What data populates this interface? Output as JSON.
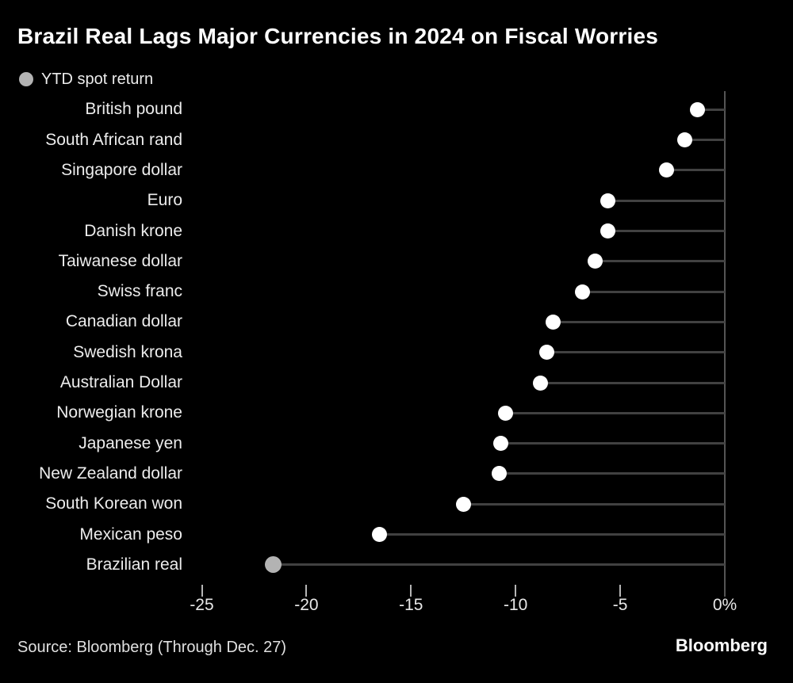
{
  "title": "Brazil Real Lags Major Currencies in 2024 on Fiscal Worries",
  "legend": {
    "label": "YTD spot return"
  },
  "footer": {
    "source": "Source: Bloomberg (Through Dec. 27)",
    "brand": "Bloomberg"
  },
  "colors": {
    "background": "#000000",
    "title_text": "#ffffff",
    "label_text": "#ececec",
    "tick_text": "#e8e8e8",
    "dot": "#ffffff",
    "highlight_dot": "#b3b3b3",
    "legend_dot": "#b3b3b3",
    "stem": "#414141",
    "axis_line": "#555555",
    "tick_mark": "#b5b5b5",
    "footer_text": "#e0e0e0",
    "brand_text": "#ffffff"
  },
  "chart_data": {
    "type": "scatter",
    "variant": "horizontal-lollipop-dot",
    "title": "Brazil Real Lags Major Currencies in 2024 on Fiscal Worries",
    "series_name": "YTD spot return",
    "unit": "%",
    "categories": [
      "British pound",
      "South African rand",
      "Singapore dollar",
      "Euro",
      "Danish krone",
      "Taiwanese dollar",
      "Swiss franc",
      "Canadian dollar",
      "Swedish krona",
      "Australian Dollar",
      "Norwegian krone",
      "Japanese yen",
      "New Zealand dollar",
      "South Korean won",
      "Mexican peso",
      "Brazilian real"
    ],
    "values": [
      -1.3,
      -1.9,
      -2.8,
      -5.6,
      -5.6,
      -6.2,
      -6.8,
      -8.2,
      -8.5,
      -8.8,
      -10.5,
      -10.7,
      -10.8,
      -12.5,
      -16.5,
      -21.6
    ],
    "highlight_category": "Brazilian real",
    "x_ticks": [
      -25,
      -20,
      -15,
      -10,
      -5,
      0
    ],
    "x_tick_labels": [
      "-25",
      "-20",
      "-15",
      "-10",
      "-5",
      "0%"
    ],
    "xlim": [
      -26.5,
      0
    ],
    "grid": false,
    "legend_position": "top-left"
  }
}
